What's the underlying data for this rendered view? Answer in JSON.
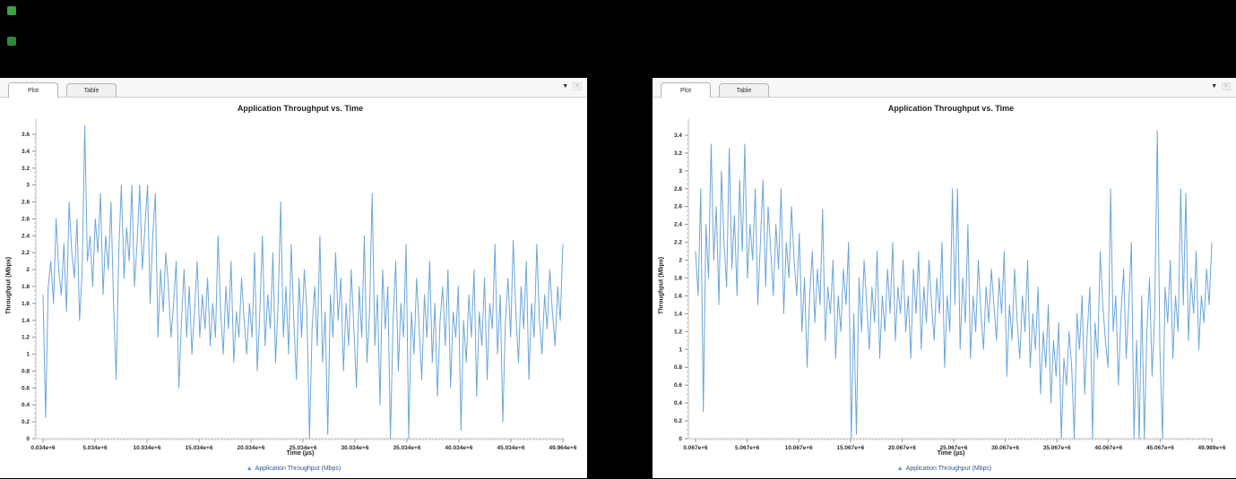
{
  "desktop": {
    "icons": [
      {
        "name": "desktop-icon-top",
        "color": "#3fa047"
      },
      {
        "name": "desktop-icon-bottom",
        "color": "#2e8b3d"
      }
    ]
  },
  "panels": [
    {
      "tabs": [
        {
          "label": "Plot",
          "active": true
        },
        {
          "label": "Table",
          "active": false
        }
      ],
      "controls": {
        "menu_icon": "▼",
        "close_icon": "✕"
      }
    },
    {
      "tabs": [
        {
          "label": "Plot",
          "active": true
        },
        {
          "label": "Table",
          "active": false
        }
      ],
      "controls": {
        "menu_icon": "▼",
        "close_icon": "✕"
      }
    }
  ],
  "chart_data": [
    {
      "type": "line",
      "title": "Application Throughput vs. Time",
      "xlabel": "Time (µs)",
      "ylabel": "Throughput (Mbps)",
      "legend": "Application Throughput (Mbps)",
      "legend_marker": "▲",
      "legend_position": "bottom-center",
      "grid": false,
      "line_color": "#6ca6d8",
      "x_tick_labels": [
        "0.034e+6",
        "5.034e+6",
        "10.034e+6",
        "15.034e+6",
        "20.034e+6",
        "25.034e+6",
        "30.034e+6",
        "35.034e+6",
        "40.034e+6",
        "45.034e+6",
        "49.964e+6"
      ],
      "y_tick_labels": [
        "0",
        "0.2",
        "0.4",
        "0.6",
        "0.8",
        "1",
        "1.2",
        "1.4",
        "1.6",
        "1.8",
        "2",
        "2.2",
        "2.4",
        "2.6",
        "2.8",
        "3",
        "3.2",
        "3.4",
        "3.6"
      ],
      "x_range_us": [
        34000,
        49964000
      ],
      "ylim": [
        0,
        3.78
      ],
      "values": [
        1.7,
        0.25,
        1.8,
        2.1,
        1.6,
        2.6,
        2.0,
        1.7,
        2.3,
        1.5,
        2.8,
        2.2,
        1.9,
        2.6,
        1.4,
        2.0,
        3.7,
        2.1,
        2.4,
        1.8,
        2.6,
        2.2,
        2.9,
        1.7,
        2.4,
        2.0,
        2.8,
        1.6,
        0.7,
        2.2,
        3.0,
        1.9,
        2.5,
        2.1,
        3.0,
        1.8,
        2.3,
        3.0,
        2.0,
        2.5,
        3.0,
        1.6,
        2.4,
        2.9,
        1.2,
        2.0,
        1.5,
        2.2,
        1.8,
        1.2,
        1.6,
        2.1,
        0.6,
        1.4,
        2.0,
        1.2,
        1.8,
        1.0,
        1.5,
        2.1,
        1.2,
        1.7,
        1.3,
        1.9,
        1.1,
        1.6,
        1.2,
        2.4,
        1.5,
        1.0,
        1.8,
        1.3,
        2.1,
        0.9,
        1.5,
        1.2,
        1.9,
        1.4,
        1.0,
        1.6,
        1.2,
        2.2,
        0.8,
        1.5,
        2.4,
        1.1,
        1.7,
        1.3,
        2.2,
        0.9,
        1.6,
        2.8,
        1.2,
        1.8,
        1.0,
        2.3,
        1.4,
        0.7,
        1.9,
        1.2,
        2.0,
        1.5,
        0.0,
        1.3,
        1.8,
        1.1,
        2.4,
        0.9,
        1.5,
        0.05,
        1.7,
        1.2,
        2.2,
        1.4,
        1.9,
        0.8,
        1.6,
        1.1,
        2.0,
        1.3,
        0.6,
        1.8,
        1.2,
        2.4,
        0.9,
        1.5,
        2.9,
        1.1,
        1.7,
        0.4,
        2.0,
        1.3,
        1.8,
        0.0,
        1.4,
        2.1,
        0.8,
        1.6,
        1.2,
        2.3,
        0.0,
        1.5,
        1.0,
        1.9,
        1.3,
        0.7,
        1.7,
        1.2,
        2.1,
        0.9,
        1.6,
        0.5,
        1.4,
        1.8,
        1.1,
        2.0,
        0.6,
        1.5,
        1.2,
        1.8,
        0.1,
        1.4,
        0.9,
        1.7,
        1.2,
        2.0,
        0.5,
        1.5,
        1.1,
        1.9,
        0.7,
        1.6,
        1.3,
        2.3,
        1.0,
        1.7,
        0.2,
        1.4,
        1.9,
        1.2,
        2.35,
        1.5,
        0.9,
        1.8,
        1.3,
        2.1,
        0.7,
        1.6,
        1.2,
        2.3,
        1.4,
        1.0,
        1.7,
        1.3,
        2.0,
        1.5,
        1.1,
        1.8,
        1.4,
        2.3
      ]
    },
    {
      "type": "line",
      "title": "Application Throughput vs. Time",
      "xlabel": "Time (µs)",
      "ylabel": "Throughput (Mbps)",
      "legend": "Application Throughput (Mbps)",
      "legend_marker": "▲",
      "legend_position": "bottom-center",
      "grid": false,
      "line_color": "#6ca6d8",
      "x_tick_labels": [
        "0.067e+6",
        "5.067e+6",
        "10.067e+6",
        "15.067e+6",
        "20.067e+6",
        "25.067e+6",
        "30.067e+6",
        "35.067e+6",
        "40.067e+6",
        "45.067e+6",
        "49.989e+6"
      ],
      "y_tick_labels": [
        "0",
        "0.2",
        "0.4",
        "0.6",
        "0.8",
        "1",
        "1.2",
        "1.4",
        "1.6",
        "1.8",
        "2",
        "2.2",
        "2.4",
        "2.6",
        "2.8",
        "3",
        "3.2",
        "3.4"
      ],
      "x_range_us": [
        67000,
        49989000
      ],
      "ylim": [
        0,
        3.58
      ],
      "values": [
        2.1,
        1.6,
        2.8,
        0.3,
        2.4,
        1.8,
        3.3,
        2.0,
        2.6,
        1.5,
        3.0,
        2.2,
        1.7,
        3.25,
        1.9,
        2.5,
        1.6,
        2.9,
        2.1,
        3.3,
        1.8,
        2.4,
        2.0,
        2.8,
        1.5,
        2.2,
        2.9,
        1.7,
        2.6,
        2.1,
        1.6,
        2.4,
        1.9,
        2.8,
        1.4,
        2.2,
        1.8,
        2.6,
        2.0,
        1.6,
        2.3,
        1.2,
        1.8,
        0.8,
        1.6,
        2.1,
        1.3,
        1.9,
        1.5,
        2.57,
        1.1,
        1.7,
        1.4,
        2.0,
        0.9,
        1.6,
        1.2,
        1.9,
        1.5,
        2.2,
        0.0,
        1.4,
        0.05,
        1.8,
        1.2,
        2.0,
        1.5,
        1.0,
        1.7,
        1.3,
        2.1,
        0.9,
        1.6,
        1.2,
        1.9,
        1.4,
        2.2,
        1.1,
        1.7,
        1.4,
        2.0,
        1.2,
        1.6,
        0.9,
        1.9,
        1.4,
        2.1,
        1.0,
        1.7,
        1.3,
        2.0,
        1.5,
        1.1,
        1.8,
        1.4,
        2.2,
        0.8,
        1.6,
        1.2,
        2.8,
        1.5,
        2.8,
        1.0,
        1.8,
        1.3,
        2.4,
        0.9,
        1.6,
        1.2,
        2.0,
        1.4,
        1.0,
        1.7,
        1.3,
        1.9,
        1.5,
        1.1,
        1.8,
        1.4,
        2.1,
        0.7,
        1.5,
        1.1,
        1.9,
        1.3,
        0.9,
        1.6,
        1.2,
        2.0,
        0.8,
        1.4,
        1.0,
        1.7,
        0.5,
        1.2,
        0.8,
        1.5,
        0.4,
        1.1,
        0.7,
        1.3,
        0.0,
        0.9,
        0.6,
        1.2,
        0.8,
        0.0,
        1.4,
        1.0,
        1.6,
        0.5,
        1.2,
        1.7,
        0.0,
        1.3,
        0.9,
        2.1,
        1.5,
        1.1,
        0.8,
        2.8,
        1.2,
        1.6,
        0.6,
        1.4,
        1.9,
        0.9,
        1.5,
        2.2,
        0.0,
        1.1,
        0.0,
        1.6,
        0.0,
        1.2,
        1.8,
        0.7,
        1.4,
        3.45,
        1.0,
        0.0,
        1.7,
        1.3,
        2.0,
        0.9,
        1.6,
        1.2,
        2.8,
        1.5,
        2.75,
        1.1,
        1.8,
        1.4,
        2.1,
        1.0,
        1.6,
        1.3,
        1.9,
        1.5,
        2.2
      ]
    }
  ]
}
